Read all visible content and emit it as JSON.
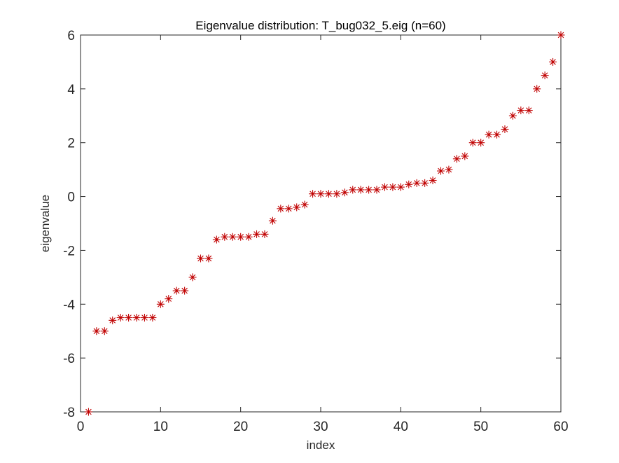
{
  "chart_data": {
    "type": "scatter",
    "title": "Eigenvalue distribution: T_bug032_5.eig (n=60)",
    "xlabel": "index",
    "ylabel": "eigenvalue",
    "xlim": [
      0,
      60
    ],
    "ylim": [
      -8,
      6
    ],
    "xticks": [
      0,
      10,
      20,
      30,
      40,
      50,
      60
    ],
    "yticks": [
      -8,
      -6,
      -4,
      -2,
      0,
      2,
      4,
      6
    ],
    "xtick_labels": [
      "0",
      "10",
      "20",
      "30",
      "40",
      "50",
      "60"
    ],
    "ytick_labels": [
      "-8",
      "-6",
      "-4",
      "-2",
      "0",
      "2",
      "4",
      "6"
    ],
    "grid": false,
    "marker": "asterisk",
    "marker_color": "#c00000",
    "series": [
      {
        "x": [
          1,
          2,
          3,
          4,
          5,
          6,
          7,
          8,
          9,
          10,
          11,
          12,
          13,
          14,
          15,
          16,
          17,
          18,
          19,
          20,
          21,
          22,
          23,
          24,
          25,
          26,
          27,
          28,
          29,
          30,
          31,
          32,
          33,
          34,
          35,
          36,
          37,
          38,
          39,
          40,
          41,
          42,
          43,
          44,
          45,
          46,
          47,
          48,
          49,
          50,
          51,
          52,
          53,
          54,
          55,
          56,
          57,
          58,
          59,
          60
        ],
        "values": [
          -8.0,
          -5.0,
          -5.0,
          -4.6,
          -4.5,
          -4.5,
          -4.5,
          -4.5,
          -4.5,
          -4.0,
          -3.8,
          -3.5,
          -3.5,
          -3.0,
          -2.3,
          -2.3,
          -1.6,
          -1.5,
          -1.5,
          -1.5,
          -1.5,
          -1.4,
          -1.4,
          -0.9,
          -0.45,
          -0.45,
          -0.4,
          -0.3,
          0.1,
          0.1,
          0.1,
          0.1,
          0.15,
          0.25,
          0.25,
          0.25,
          0.25,
          0.35,
          0.35,
          0.35,
          0.45,
          0.5,
          0.5,
          0.6,
          0.95,
          1.0,
          1.4,
          1.5,
          2.0,
          2.0,
          2.3,
          2.3,
          2.5,
          3.0,
          3.2,
          3.2,
          4.0,
          4.5,
          5.0,
          6.0
        ]
      }
    ]
  }
}
